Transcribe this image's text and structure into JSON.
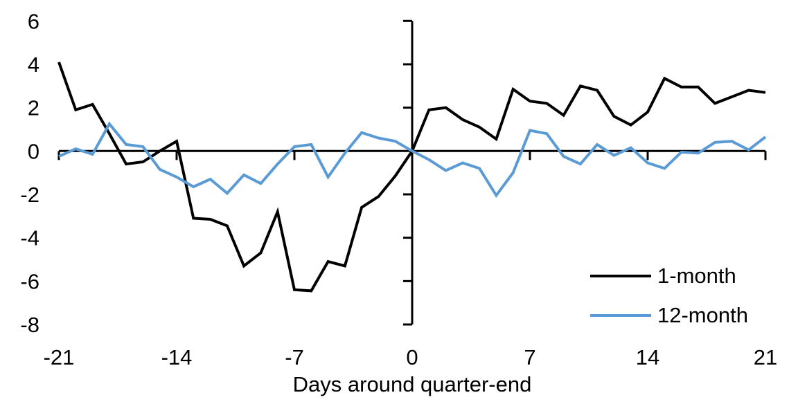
{
  "chart_data": {
    "type": "line",
    "title": "",
    "xlabel": "Days around quarter-end",
    "ylabel": "",
    "xlim": [
      -21,
      21
    ],
    "ylim": [
      -8,
      6
    ],
    "grid": false,
    "legend_position": "lower right",
    "x_ticks": [
      -21,
      -14,
      -7,
      0,
      7,
      14,
      21
    ],
    "y_ticks": [
      6,
      4,
      2,
      0,
      -2,
      -4,
      -6,
      -8
    ],
    "x": [
      -21,
      -20,
      -19,
      -18,
      -17,
      -16,
      -15,
      -14,
      -13,
      -12,
      -11,
      -10,
      -9,
      -8,
      -7,
      -6,
      -5,
      -4,
      -3,
      -2,
      -1,
      0,
      1,
      2,
      3,
      4,
      5,
      6,
      7,
      8,
      9,
      10,
      11,
      12,
      13,
      14,
      15,
      16,
      17,
      18,
      19,
      20,
      21
    ],
    "series": [
      {
        "name": "1-month",
        "color": "#000000",
        "values": [
          4.1,
          1.9,
          2.15,
          0.8,
          -0.6,
          -0.5,
          0.0,
          0.45,
          -3.1,
          -3.15,
          -3.45,
          -5.3,
          -4.7,
          -2.8,
          -6.4,
          -6.45,
          -5.1,
          -5.3,
          -2.6,
          -2.1,
          -1.15,
          0.0,
          1.9,
          2.0,
          1.45,
          1.1,
          0.55,
          2.85,
          2.3,
          2.2,
          1.65,
          3.0,
          2.8,
          1.6,
          1.2,
          1.8,
          3.35,
          2.95,
          2.95,
          2.2,
          2.5,
          2.8,
          2.7
        ]
      },
      {
        "name": "12-month",
        "color": "#5B9BD5",
        "values": [
          -0.25,
          0.1,
          -0.15,
          1.25,
          0.3,
          0.2,
          -0.85,
          -1.2,
          -1.65,
          -1.3,
          -1.95,
          -1.1,
          -1.5,
          -0.6,
          0.2,
          0.3,
          -1.2,
          -0.1,
          0.85,
          0.6,
          0.45,
          0.0,
          -0.4,
          -0.9,
          -0.55,
          -0.8,
          -2.05,
          -1.0,
          0.95,
          0.8,
          -0.25,
          -0.6,
          0.3,
          -0.2,
          0.15,
          -0.55,
          -0.8,
          -0.05,
          -0.1,
          0.4,
          0.45,
          0.05,
          0.65
        ]
      }
    ]
  }
}
